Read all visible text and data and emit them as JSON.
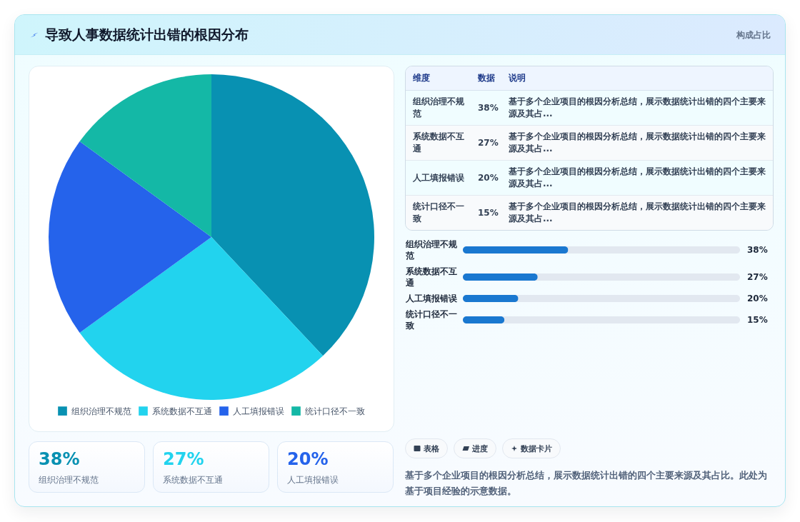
{
  "chart_data": [
    {
      "type": "pie",
      "title": "导致人事数据统计出错的根因分布",
      "categories": [
        "组织治理不规范",
        "系统数据不互通",
        "人工填报错误",
        "统计口径不一致"
      ],
      "values": [
        38,
        27,
        20,
        15
      ],
      "colors": [
        "#0891b2",
        "#22d3ee",
        "#2563eb",
        "#14b8a6"
      ],
      "legend": "bottom"
    },
    {
      "type": "other",
      "title": "构成占比",
      "annotations": [
        "维度",
        "数据",
        "说明",
        "组织治理不规范",
        "38%",
        "基于多个企业项目的根因分析总结，展示数据统计出错的四个主要来源及其占...",
        "系统数据不互通",
        "27%",
        "基于多个企业项目的根因分析总结，展示数据统计出错的四个主要来源及其占...",
        "人工填报错误",
        "20%",
        "基于多个企业项目的根因分析总结，展示数据统计出错的四个主要来源及其占...",
        "统计口径不一致",
        "15%",
        "基于多个企业项目的根因分析总结，展示数据统计出错的四个主要来源及其占..."
      ]
    },
    {
      "type": "bar",
      "orientation": "horizontal",
      "categories": [
        "组织治理不规范",
        "系统数据不互通",
        "人工填报错误",
        "统计口径不一致"
      ],
      "values": [
        38,
        27,
        20,
        15
      ],
      "value_labels": [
        "38%",
        "27%",
        "20%",
        "15%"
      ],
      "color": "#1a78d0",
      "xlim": [
        0,
        100
      ],
      "tick_labels": "y"
    },
    {
      "type": "other",
      "annotations": [
        "38%",
        "组织治理不规范",
        "27%",
        "系统数据不互通",
        "20%",
        "人工填报错误"
      ]
    },
    {
      "type": "other",
      "annotations": [
        "表格",
        "进度",
        "数据卡片",
        "基于多个企业项目的根因分析总结，展示数据统计出错的四个主要来源及其占比。此处为基于项目经验的示意数据。"
      ]
    }
  ]
}
